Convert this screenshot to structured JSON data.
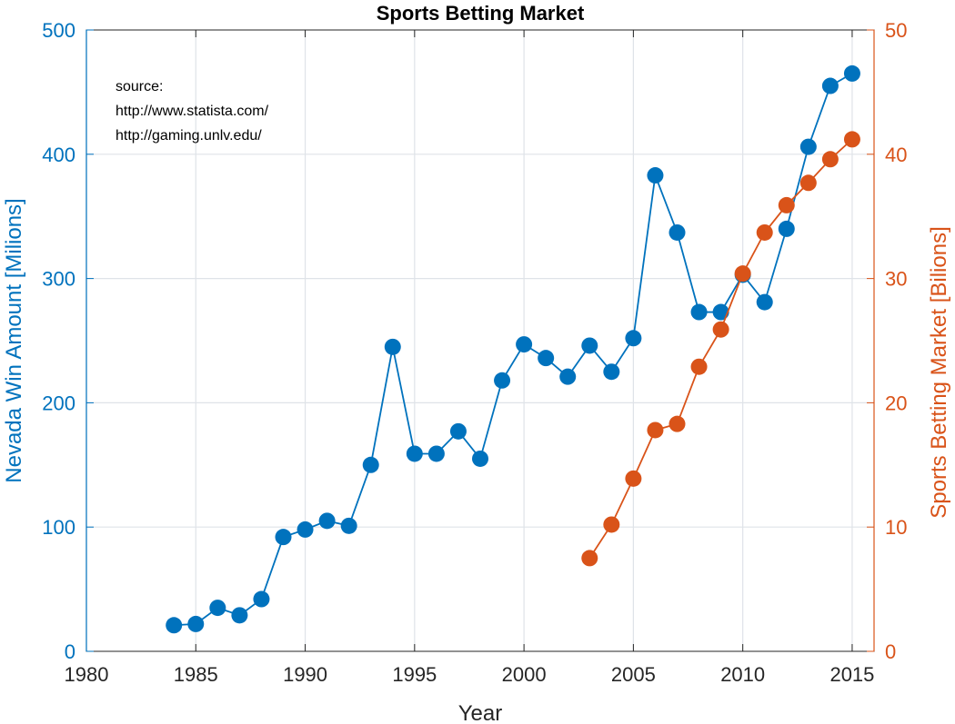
{
  "chart_data": {
    "type": "line",
    "title": "Sports Betting Market",
    "xlabel": "Year",
    "ylabel_left": "Nevada Win Amount [Milions]",
    "ylabel_right": "Sports Betting Market [Bilions]",
    "xlim": [
      1980,
      2016
    ],
    "ylim_left": [
      0,
      500
    ],
    "ylim_right": [
      0,
      50
    ],
    "x_ticks": [
      "1980",
      "1985",
      "1990",
      "1995",
      "2000",
      "2005",
      "2010",
      "2015"
    ],
    "y_ticks_left": [
      "0",
      "100",
      "200",
      "300",
      "400",
      "500"
    ],
    "y_ticks_right": [
      "0",
      "10",
      "20",
      "30",
      "40",
      "50"
    ],
    "grid": true,
    "annotation": [
      "source:",
      "http://www.statista.com/",
      "http://gaming.unlv.edu/"
    ],
    "colors": {
      "left": "#0072BD",
      "right": "#D95319"
    },
    "series": [
      {
        "axis": "left",
        "x": [
          1984,
          1985,
          1986,
          1987,
          1988,
          1989,
          1990,
          1991,
          1992,
          1993,
          1994,
          1995,
          1996,
          1997,
          1998,
          1999,
          2000,
          2001,
          2002,
          2003,
          2004,
          2005,
          2006,
          2007,
          2008,
          2009,
          2010,
          2011,
          2012,
          2013,
          2014,
          2015
        ],
        "values": [
          21,
          22,
          35,
          29,
          42,
          92,
          98,
          105,
          101,
          150,
          245,
          159,
          159,
          177,
          155,
          218,
          247,
          236,
          221,
          246,
          225,
          252,
          383,
          337,
          273,
          273,
          303,
          281,
          340,
          406,
          455,
          465
        ]
      },
      {
        "axis": "right",
        "x": [
          2003,
          2004,
          2005,
          2006,
          2007,
          2008,
          2009,
          2010,
          2011,
          2012,
          2013,
          2014,
          2015
        ],
        "values": [
          7.5,
          10.2,
          13.9,
          17.8,
          18.3,
          22.9,
          25.9,
          30.4,
          33.7,
          35.9,
          37.7,
          39.6,
          41.2
        ]
      }
    ]
  }
}
